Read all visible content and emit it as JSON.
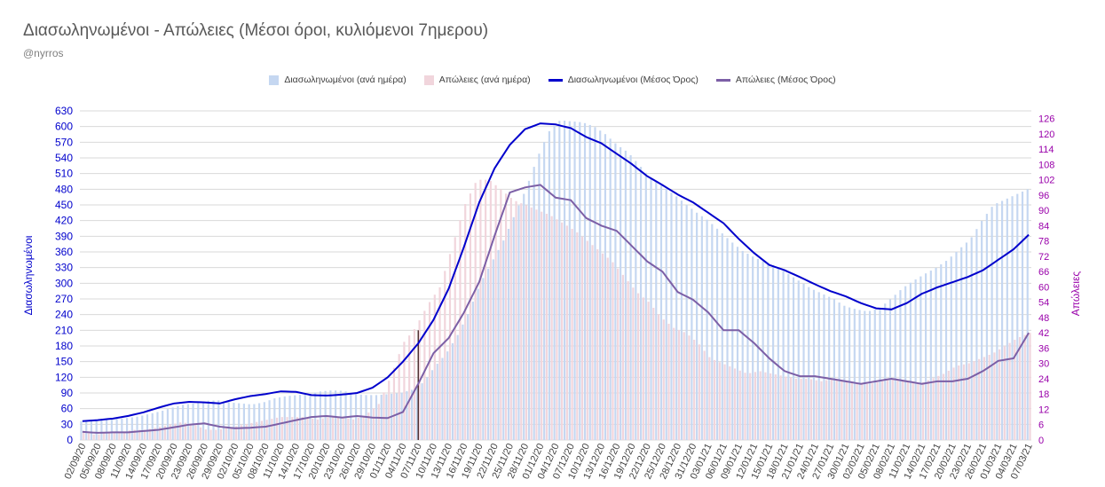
{
  "header": {
    "title": "Διασωληνωμένοι - Απώλειες (Μέσοι όροι, κυλιόμενοι 7ημερου)",
    "subtitle": "@nyrros"
  },
  "colors": {
    "intubated_daily": "#c5d7f1",
    "deaths_daily": "#f1d5dc",
    "intubated_avg": "#0000cc",
    "deaths_avg": "#7c5fa6",
    "left_axis": "#0000cc",
    "right_axis": "#9900aa",
    "marker": "#3a1a1a"
  },
  "chart_data": {
    "type": "bar",
    "xlabel": "",
    "ylabel": "Διασωληνωμένοι",
    "y2label": "Απώλειες",
    "ylim": [
      0,
      630
    ],
    "y2lim": [
      0,
      129
    ],
    "yticks": [
      0,
      30,
      60,
      90,
      120,
      150,
      180,
      210,
      240,
      270,
      300,
      330,
      360,
      390,
      420,
      450,
      480,
      510,
      540,
      570,
      600,
      630
    ],
    "y2ticks": [
      0,
      6,
      12,
      18,
      24,
      30,
      36,
      42,
      48,
      54,
      60,
      66,
      72,
      78,
      84,
      90,
      96,
      102,
      108,
      114,
      120,
      126
    ],
    "grid": true,
    "legend_position": "top",
    "x_tick_labels": [
      "02/09/20",
      "05/09/20",
      "08/09/20",
      "11/09/20",
      "14/09/20",
      "17/09/20",
      "20/09/20",
      "23/09/20",
      "26/09/20",
      "29/09/20",
      "02/10/20",
      "05/10/20",
      "08/10/20",
      "11/10/20",
      "14/10/20",
      "17/10/20",
      "20/10/20",
      "23/10/20",
      "26/10/20",
      "29/10/20",
      "01/11/20",
      "04/11/20",
      "07/11/20",
      "10/11/20",
      "13/11/20",
      "16/11/20",
      "19/11/20",
      "22/11/20",
      "25/11/20",
      "28/11/20",
      "01/12/20",
      "04/12/20",
      "07/12/20",
      "10/12/20",
      "13/12/20",
      "16/12/20",
      "19/12/20",
      "22/12/20",
      "25/12/20",
      "28/12/20",
      "31/12/20",
      "03/01/21",
      "06/01/21",
      "09/01/21",
      "12/01/21",
      "15/01/21",
      "18/01/21",
      "21/01/21",
      "24/01/21",
      "27/01/21",
      "30/01/21",
      "02/02/21",
      "05/02/21",
      "08/02/21",
      "11/02/21",
      "14/02/21",
      "17/02/21",
      "20/02/21",
      "23/02/21",
      "26/02/21",
      "01/03/21",
      "04/03/21",
      "07/03/21"
    ],
    "marker_date": "07/11/20",
    "series": [
      {
        "name": "Διασωληνωμένοι (ανά ημέρα)",
        "type": "bar",
        "axis": "left",
        "values": [
          36,
          38,
          40,
          40,
          42,
          45,
          50,
          55,
          62,
          68,
          70,
          75,
          76,
          72,
          70,
          68,
          72,
          80,
          84,
          86,
          88,
          93,
          95,
          94,
          88,
          86,
          86,
          88,
          90,
          96,
          110,
          140,
          165,
          200,
          245,
          300,
          340,
          380,
          430,
          480,
          540,
          590,
          612,
          610,
          608,
          600,
          585,
          565,
          550,
          525,
          500,
          485,
          470,
          452,
          435,
          420,
          400,
          380,
          362,
          350,
          340,
          332,
          318,
          304,
          290,
          280,
          270,
          256,
          250,
          246,
          252,
          270,
          290,
          305,
          318,
          330,
          345,
          365,
          385,
          420,
          450,
          460,
          470,
          480
        ]
      },
      {
        "name": "Απώλειες (ανά ημέρα)",
        "type": "bar",
        "axis": "right",
        "values": [
          3,
          2,
          3,
          3,
          4,
          4,
          5,
          6,
          7,
          6,
          4,
          4,
          5,
          6,
          7,
          8,
          9,
          9,
          9,
          8,
          9,
          9,
          8,
          10,
          14,
          25,
          38,
          44,
          53,
          60,
          76,
          92,
          102,
          102,
          98,
          94,
          92,
          90,
          88,
          85,
          82,
          78,
          74,
          70,
          64,
          58,
          54,
          48,
          44,
          42,
          38,
          32,
          30,
          28,
          26,
          27,
          26,
          25,
          24,
          24,
          23,
          24,
          23,
          22,
          22,
          23,
          24,
          23,
          22,
          24,
          26,
          29,
          30,
          32,
          34,
          37,
          40,
          42
        ]
      },
      {
        "name": "Διασωληνωμένοι (Μέσος Όρος)",
        "type": "line",
        "axis": "left",
        "x": [
          0,
          3,
          6,
          9,
          12,
          15,
          18,
          21,
          24,
          27,
          30,
          33,
          36,
          39,
          42,
          45,
          48,
          51,
          54,
          57,
          60,
          63,
          66,
          69,
          72,
          75,
          78,
          81,
          84,
          87,
          90,
          93,
          96,
          99,
          102,
          105,
          108,
          111,
          114,
          117,
          120,
          123,
          126,
          129,
          132,
          135,
          138,
          141,
          144,
          147,
          150,
          153,
          156,
          159,
          162,
          165,
          168,
          171,
          174,
          177,
          180,
          183,
          186
        ],
        "values": [
          36,
          38,
          41,
          46,
          53,
          62,
          70,
          73,
          72,
          70,
          78,
          84,
          88,
          93,
          92,
          86,
          85,
          87,
          90,
          100,
          120,
          150,
          185,
          230,
          290,
          370,
          455,
          520,
          565,
          595,
          606,
          604,
          597,
          580,
          568,
          548,
          528,
          505,
          488,
          470,
          455,
          435,
          415,
          385,
          358,
          335,
          325,
          312,
          298,
          285,
          275,
          262,
          252,
          250,
          262,
          280,
          292,
          302,
          312,
          325,
          345,
          365,
          393
        ]
      },
      {
        "name": "Απώλειες (Μέσος Όρος)",
        "type": "line",
        "axis": "right",
        "x": [
          0,
          3,
          6,
          9,
          12,
          15,
          18,
          21,
          24,
          27,
          30,
          33,
          36,
          39,
          42,
          45,
          48,
          51,
          54,
          57,
          60,
          63,
          66,
          69,
          72,
          75,
          78,
          81,
          84,
          87,
          90,
          93,
          96,
          99,
          102,
          105,
          108,
          111,
          114,
          117,
          120,
          123,
          126,
          129,
          132,
          135,
          138,
          141,
          144,
          147,
          150,
          153,
          156,
          159,
          162,
          165,
          168,
          171,
          174,
          177,
          180,
          183,
          186
        ],
        "values": [
          3.2,
          2.8,
          3.0,
          3.0,
          3.5,
          4.0,
          5.0,
          6.0,
          6.5,
          5.2,
          4.6,
          4.8,
          5.2,
          6.5,
          7.8,
          9.0,
          9.4,
          8.8,
          9.4,
          8.8,
          8.6,
          11,
          22,
          34,
          40,
          50,
          62,
          80,
          97,
          99,
          100,
          95,
          94,
          87,
          84,
          82,
          76,
          70,
          66,
          58,
          55,
          50,
          43,
          43,
          38,
          32,
          27,
          25,
          25,
          24,
          23,
          22,
          23,
          24,
          23,
          22,
          23,
          23,
          24,
          27,
          31,
          32,
          42
        ]
      }
    ]
  }
}
